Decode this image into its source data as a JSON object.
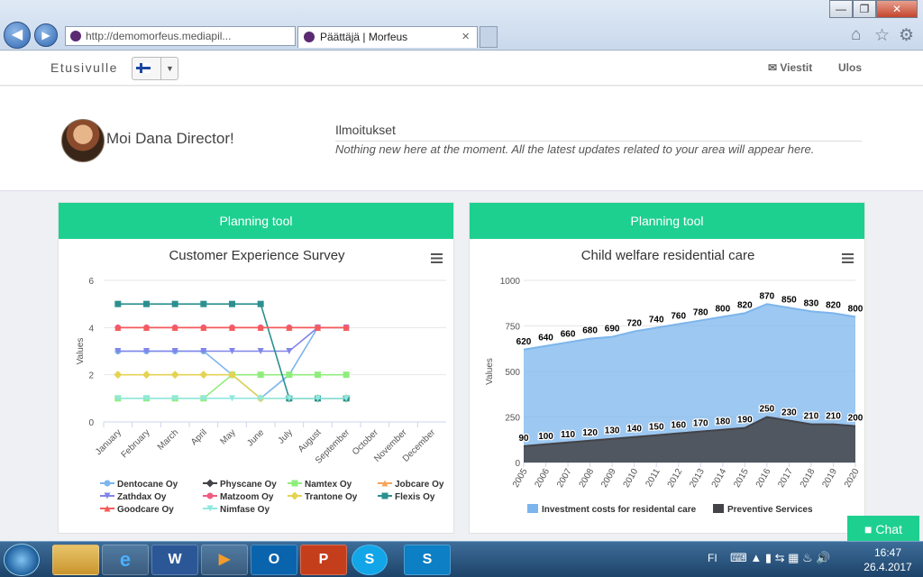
{
  "browser": {
    "url": "http://demomorfeus.mediapil...",
    "tab_title": "Päättäjä | Morfeus",
    "tab_close": "×",
    "window_buttons": [
      "—",
      "❐",
      "✕"
    ]
  },
  "appbar": {
    "home_label": "Etusivulle",
    "messages_label": "Viestit",
    "logout_label": "Ulos",
    "language_caret": "▼"
  },
  "welcome": {
    "greeting": "Moi Dana Director!",
    "notifications_title": "Ilmoitukset",
    "notifications_text": "Nothing new here at the moment. All the latest updates related to your area will appear here."
  },
  "panels": [
    {
      "header": "Planning tool"
    },
    {
      "header": "Planning tool"
    }
  ],
  "chart_data": [
    {
      "type": "line",
      "title": "Customer Experience Survey",
      "ylabel": "Values",
      "ylim": [
        0,
        6
      ],
      "yticks": [
        0,
        2,
        4,
        6
      ],
      "categories": [
        "January",
        "February",
        "March",
        "April",
        "May",
        "June",
        "July",
        "August",
        "September",
        "October",
        "November",
        "December"
      ],
      "series": [
        {
          "name": "Dentocane Oy",
          "color": "#7cb5ec",
          "marker": "circle",
          "values": [
            3,
            3,
            3,
            3,
            2,
            1,
            2,
            4,
            4,
            null,
            null,
            null
          ]
        },
        {
          "name": "Physcane Oy",
          "color": "#434348",
          "marker": "diamond",
          "values": [
            null,
            null,
            null,
            null,
            null,
            null,
            1,
            1,
            1,
            null,
            null,
            null
          ]
        },
        {
          "name": "Namtex Oy",
          "color": "#90ed7d",
          "marker": "square",
          "values": [
            1,
            1,
            1,
            1,
            2,
            2,
            2,
            2,
            2,
            null,
            null,
            null
          ]
        },
        {
          "name": "Jobcare Oy",
          "color": "#f7a35c",
          "marker": "triangle",
          "values": [
            4,
            4,
            4,
            4,
            4,
            4,
            4,
            4,
            4,
            null,
            null,
            null
          ]
        },
        {
          "name": "Zathdax Oy",
          "color": "#8085e9",
          "marker": "triangle-down",
          "values": [
            3,
            3,
            3,
            3,
            3,
            3,
            3,
            4,
            4,
            null,
            null,
            null
          ]
        },
        {
          "name": "Matzoom Oy",
          "color": "#f15c80",
          "marker": "circle",
          "values": [
            4,
            4,
            4,
            4,
            4,
            4,
            4,
            4,
            4,
            null,
            null,
            null
          ]
        },
        {
          "name": "Trantone Oy",
          "color": "#e4d354",
          "marker": "diamond",
          "values": [
            2,
            2,
            2,
            2,
            2,
            1,
            1,
            1,
            1,
            null,
            null,
            null
          ]
        },
        {
          "name": "Flexis Oy",
          "color": "#2b908f",
          "marker": "square",
          "values": [
            5,
            5,
            5,
            5,
            5,
            5,
            1,
            1,
            1,
            null,
            null,
            null
          ]
        },
        {
          "name": "Goodcare Oy",
          "color": "#f45b5b",
          "marker": "triangle",
          "values": [
            4,
            4,
            4,
            4,
            4,
            4,
            4,
            4,
            4,
            null,
            null,
            null
          ]
        },
        {
          "name": "Nimfase Oy",
          "color": "#91e8e1",
          "marker": "triangle-down",
          "values": [
            1,
            1,
            1,
            1,
            1,
            1,
            1,
            1,
            1,
            null,
            null,
            null
          ]
        }
      ]
    },
    {
      "type": "area",
      "title": "Child welfare residential care",
      "ylabel": "Values",
      "ylim": [
        0,
        1000
      ],
      "yticks": [
        0,
        250,
        500,
        750,
        1000
      ],
      "categories": [
        "2005",
        "2006",
        "2007",
        "2008",
        "2009",
        "2010",
        "2011",
        "2012",
        "2013",
        "2014",
        "2015",
        "2016",
        "2017",
        "2018",
        "2019",
        "2020"
      ],
      "series": [
        {
          "name": "Investment costs for residental care",
          "color": "#7cb5ec",
          "values": [
            620,
            640,
            660,
            680,
            690,
            720,
            740,
            760,
            780,
            800,
            820,
            870,
            850,
            830,
            820,
            800
          ]
        },
        {
          "name": "Preventive Services",
          "color": "#434348",
          "values": [
            90,
            100,
            110,
            120,
            130,
            140,
            150,
            160,
            170,
            180,
            190,
            250,
            230,
            210,
            210,
            200
          ]
        }
      ]
    }
  ],
  "chat": {
    "label": "Chat"
  },
  "taskbar": {
    "apps": [
      "e",
      "W",
      "O",
      "P",
      "S",
      "S"
    ],
    "tray_lang": "FI",
    "time": "16:47",
    "date": "26.4.2017"
  }
}
